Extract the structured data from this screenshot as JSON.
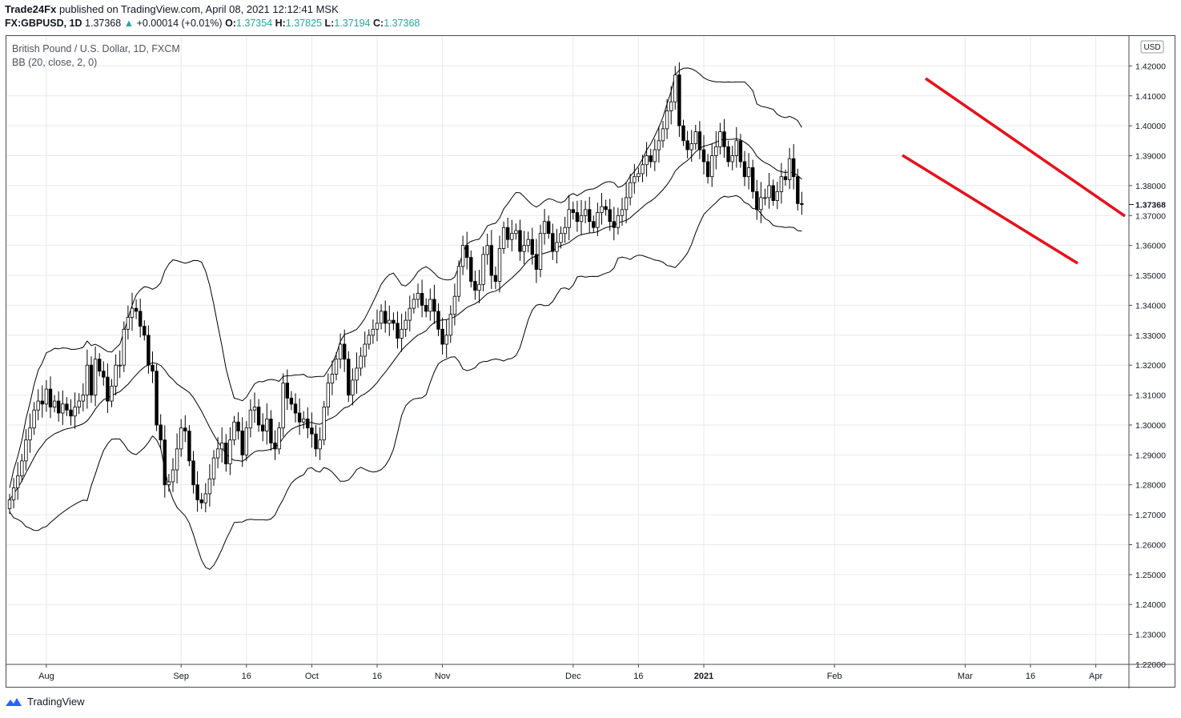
{
  "header": {
    "publisher": "Trade24Fx",
    "published_text": "published on TradingView.com, April 08, 2021 12:12:41 MSK",
    "symbol": "FX:GBPUSD, 1D",
    "last": "1.37368",
    "change": "+0.00014 (+0.01%)",
    "open_label": "O:",
    "open": "1.37354",
    "high_label": "H:",
    "high": "1.37825",
    "low_label": "L:",
    "low": "1.37194",
    "close_label": "C:",
    "close": "1.37368",
    "change_arrow_icon": "triangle-up-icon"
  },
  "legend": {
    "instrument": "British Pound / U.S. Dollar, 1D, FXCM",
    "indicator": "BB (20, close, 2, 0)"
  },
  "currency_badge": "USD",
  "price_tag": "1.37368",
  "footer": {
    "brand": "TradingView",
    "logo_icon": "tradingview-logo-icon"
  },
  "colors": {
    "up": "#ffffff",
    "down": "#000000",
    "outline": "#000000",
    "trendline": "#e8101a",
    "band": "#000000",
    "grid": "#e7e9ef"
  },
  "chart_data": {
    "type": "candlestick",
    "title": "British Pound / U.S. Dollar, 1D, FXCM",
    "indicator": "BB (20, close, 2, 0)",
    "ylim": [
      1.22,
      1.43
    ],
    "y_ticks": [
      "1.22000",
      "1.23000",
      "1.24000",
      "1.25000",
      "1.26000",
      "1.27000",
      "1.28000",
      "1.29000",
      "1.30000",
      "1.31000",
      "1.32000",
      "1.33000",
      "1.34000",
      "1.35000",
      "1.36000",
      "1.37000",
      "1.38000",
      "1.39000",
      "1.40000",
      "1.41000",
      "1.42000"
    ],
    "x_ticks": [
      "Aug",
      "Sep",
      "16",
      "Oct",
      "16",
      "Nov",
      "Dec",
      "16",
      "2021",
      "Feb",
      "Mar",
      "16",
      "Apr"
    ],
    "x_tick_index": [
      9,
      42,
      58,
      74,
      90,
      106,
      138,
      154,
      170,
      202,
      234,
      250,
      266
    ],
    "last_value": 1.37368,
    "close": [
      1.275,
      1.279,
      1.283,
      1.288,
      1.295,
      1.299,
      1.305,
      1.308,
      1.307,
      1.312,
      1.306,
      1.308,
      1.304,
      1.307,
      1.305,
      1.303,
      1.306,
      1.308,
      1.31,
      1.32,
      1.31,
      1.322,
      1.318,
      1.316,
      1.308,
      1.313,
      1.32,
      1.32,
      1.332,
      1.336,
      1.339,
      1.338,
      1.333,
      1.33,
      1.32,
      1.318,
      1.3,
      1.295,
      1.28,
      1.281,
      1.285,
      1.292,
      1.299,
      1.298,
      1.288,
      1.28,
      1.275,
      1.274,
      1.277,
      1.282,
      1.289,
      1.292,
      1.294,
      1.287,
      1.295,
      1.301,
      1.298,
      1.29,
      1.299,
      1.305,
      1.306,
      1.3,
      1.298,
      1.302,
      1.294,
      1.292,
      1.299,
      1.314,
      1.309,
      1.307,
      1.304,
      1.301,
      1.302,
      1.299,
      1.297,
      1.292,
      1.295,
      1.306,
      1.314,
      1.317,
      1.322,
      1.327,
      1.322,
      1.31,
      1.315,
      1.319,
      1.323,
      1.327,
      1.33,
      1.332,
      1.334,
      1.338,
      1.334,
      1.335,
      1.334,
      1.329,
      1.332,
      1.335,
      1.339,
      1.342,
      1.344,
      1.34,
      1.338,
      1.342,
      1.338,
      1.332,
      1.327,
      1.33,
      1.337,
      1.343,
      1.353,
      1.36,
      1.356,
      1.348,
      1.345,
      1.347,
      1.357,
      1.36,
      1.35,
      1.348,
      1.359,
      1.366,
      1.362,
      1.364,
      1.365,
      1.358,
      1.36,
      1.362,
      1.357,
      1.352,
      1.364,
      1.368,
      1.364,
      1.358,
      1.361,
      1.364,
      1.366,
      1.372,
      1.371,
      1.368,
      1.37,
      1.372,
      1.368,
      1.366,
      1.371,
      1.373,
      1.372,
      1.368,
      1.366,
      1.37,
      1.372,
      1.376,
      1.381,
      1.383,
      1.384,
      1.387,
      1.39,
      1.388,
      1.392,
      1.395,
      1.399,
      1.405,
      1.408,
      1.417,
      1.4,
      1.395,
      1.392,
      1.394,
      1.398,
      1.392,
      1.388,
      1.383,
      1.39,
      1.393,
      1.398,
      1.393,
      1.388,
      1.39,
      1.395,
      1.388,
      1.383,
      1.386,
      1.378,
      1.372,
      1.376,
      1.376,
      1.38,
      1.375,
      1.378,
      1.383,
      1.382,
      1.389,
      1.383,
      1.374,
      1.3737
    ]
  }
}
